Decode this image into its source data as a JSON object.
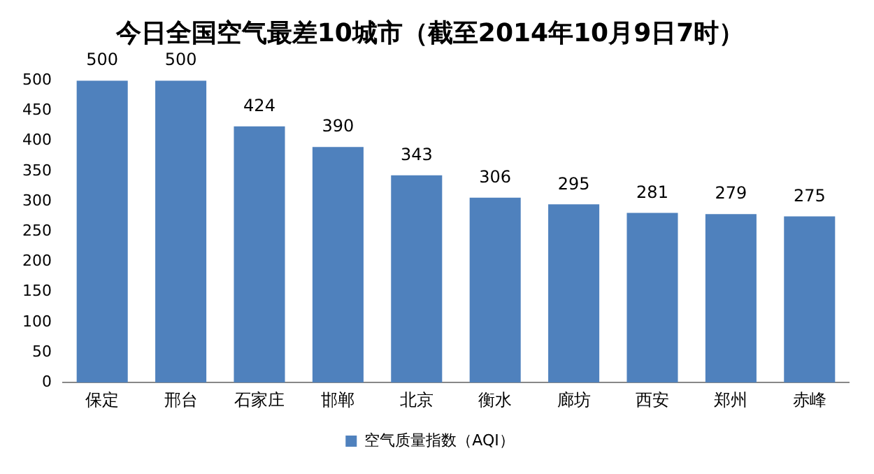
{
  "chart_data": {
    "type": "bar",
    "title": "今日全国空气最差10城市（截至2014年10月9日7时）",
    "categories": [
      "保定",
      "邢台",
      "石家庄",
      "邯郸",
      "北京",
      "衡水",
      "廊坊",
      "西安",
      "郑州",
      "赤峰"
    ],
    "series": [
      {
        "name": "空气质量指数（AQI）",
        "color": "#4f81bd",
        "values": [
          500,
          500,
          424,
          390,
          343,
          306,
          295,
          281,
          279,
          275
        ]
      }
    ],
    "ylim": [
      0,
      500
    ],
    "yticks": [
      0,
      50,
      100,
      150,
      200,
      250,
      300,
      350,
      400,
      450,
      500
    ],
    "grid": false,
    "legend": "bottom",
    "data_labels": true
  }
}
